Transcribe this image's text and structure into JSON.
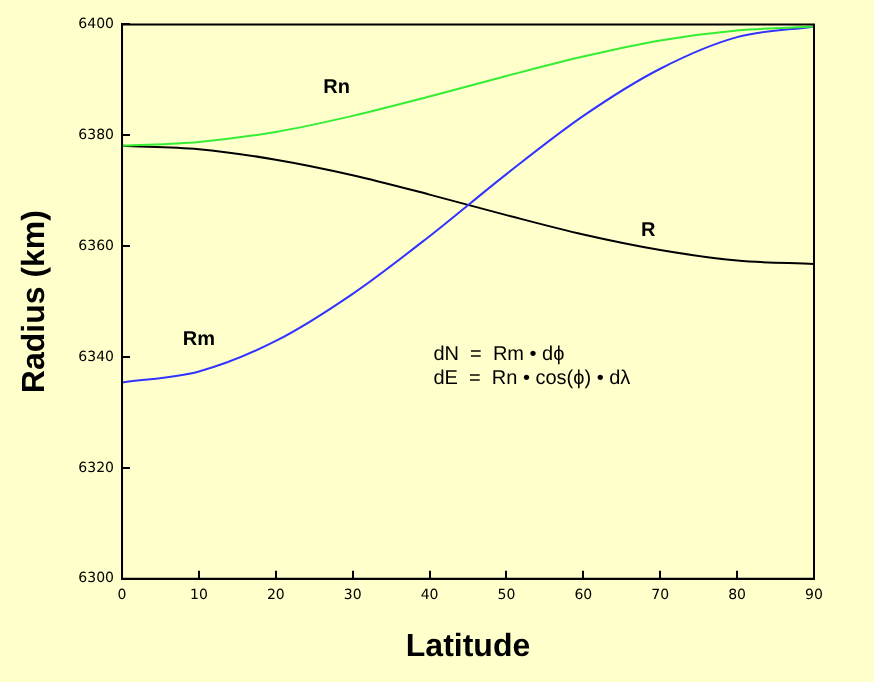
{
  "chart_data": {
    "type": "line",
    "xlabel": "Latitude",
    "ylabel": "Radius (km)",
    "x": [
      0,
      10,
      20,
      30,
      40,
      50,
      60,
      70,
      80,
      90
    ],
    "series": [
      {
        "name": "Rn",
        "color": "#33ee33",
        "values": [
          6378.1,
          6378.8,
          6380.6,
          6383.5,
          6387.0,
          6390.7,
          6394.2,
          6397.1,
          6398.9,
          6399.6
        ]
      },
      {
        "name": "Rm",
        "color": "#3333ff",
        "values": [
          6335.4,
          6337.4,
          6342.9,
          6351.4,
          6361.8,
          6373.0,
          6383.5,
          6392.0,
          6397.7,
          6399.6
        ]
      },
      {
        "name": "R",
        "color": "#000000",
        "values": [
          6378.1,
          6377.5,
          6375.6,
          6372.8,
          6369.3,
          6365.6,
          6362.1,
          6359.3,
          6357.4,
          6356.8
        ]
      }
    ],
    "xlim": [
      0,
      90
    ],
    "xticks": [
      0,
      10,
      20,
      30,
      40,
      50,
      60,
      70,
      80,
      90
    ],
    "ylim": [
      6300,
      6400
    ],
    "yticks": [
      6300,
      6320,
      6340,
      6360,
      6380,
      6400
    ],
    "grid": false,
    "legend": false,
    "marker": "none",
    "line_style": "solid",
    "annotations": [
      "dN  =  Rm • dϕ",
      "dE  =  Rn • cos(ϕ) • dλ"
    ]
  }
}
